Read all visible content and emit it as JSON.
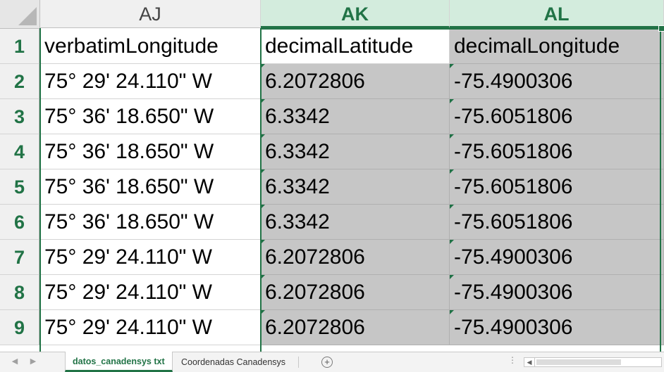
{
  "columns": [
    {
      "letter": "AJ",
      "selected": false
    },
    {
      "letter": "AK",
      "selected": true
    },
    {
      "letter": "AL",
      "selected": true
    }
  ],
  "rows": [
    {
      "num": "1",
      "aj": "verbatimLongitude",
      "ak": "decimalLatitude",
      "al": "decimalLongitude"
    },
    {
      "num": "2",
      "aj": "75° 29' 24.110\" W",
      "ak": "6.2072806",
      "al": "-75.4900306"
    },
    {
      "num": "3",
      "aj": "75° 36' 18.650\" W",
      "ak": "6.3342",
      "al": "-75.6051806"
    },
    {
      "num": "4",
      "aj": "75° 36' 18.650\" W",
      "ak": "6.3342",
      "al": "-75.6051806"
    },
    {
      "num": "5",
      "aj": "75° 36' 18.650\" W",
      "ak": "6.3342",
      "al": "-75.6051806"
    },
    {
      "num": "6",
      "aj": "75° 36' 18.650\" W",
      "ak": "6.3342",
      "al": "-75.6051806"
    },
    {
      "num": "7",
      "aj": "75° 29' 24.110\" W",
      "ak": "6.2072806",
      "al": "-75.4900306"
    },
    {
      "num": "8",
      "aj": "75° 29' 24.110\" W",
      "ak": "6.2072806",
      "al": "-75.4900306"
    },
    {
      "num": "9",
      "aj": "75° 29' 24.110\" W",
      "ak": "6.2072806",
      "al": "-75.4900306"
    }
  ],
  "tabs": {
    "active": "datos_canadensys txt",
    "other": "Coordenadas Canadensys",
    "add_symbol": "+",
    "nav_prev": "◀",
    "nav_next": "▶",
    "scroll_left": "◀",
    "more": "⋮"
  },
  "colors": {
    "accent": "#217346",
    "selected_header_bg": "#d3ecdd",
    "selected_cell_bg": "#c6c6c6"
  }
}
